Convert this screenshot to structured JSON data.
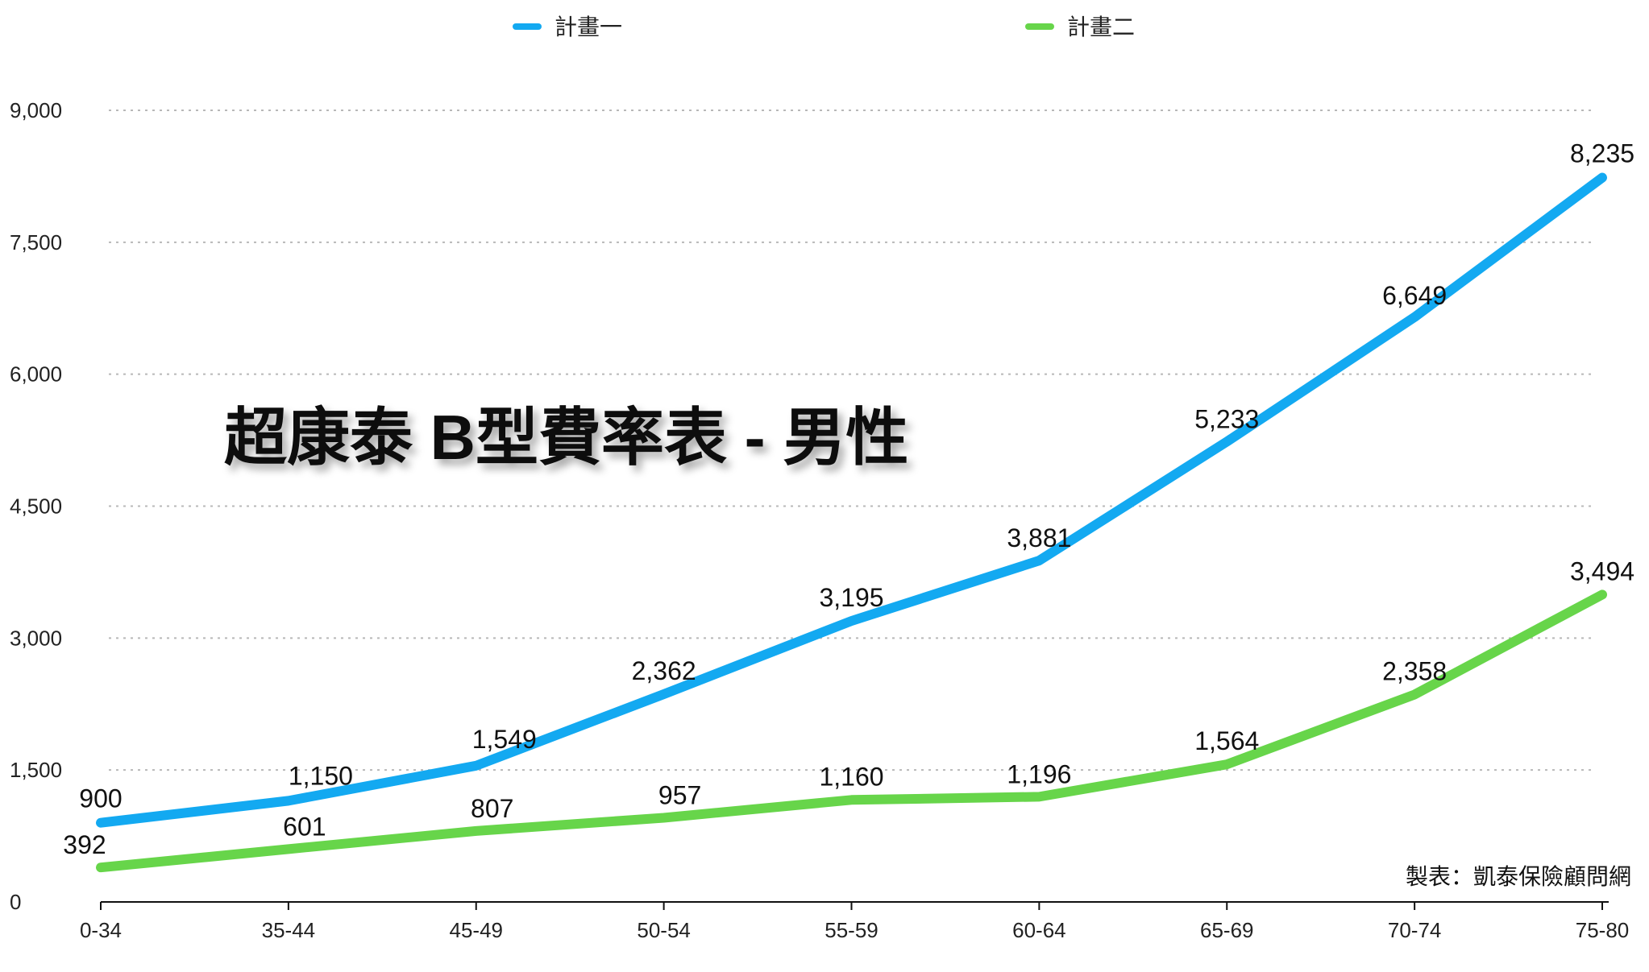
{
  "colors": {
    "series_1": "#13A9F1",
    "series_2": "#67D54A",
    "grid": "#B8B8B8",
    "axis": "#111111",
    "text": "#111111"
  },
  "chart_data": {
    "type": "line",
    "title": "超康泰 B型費率表 - 男性",
    "subtitle": "",
    "xlabel": "",
    "ylabel": "",
    "grid": true,
    "legend_position": "top",
    "categories": [
      "0-34",
      "35-44",
      "45-49",
      "50-54",
      "55-59",
      "60-64",
      "65-69",
      "70-74",
      "75-80"
    ],
    "ylim": [
      0,
      9000
    ],
    "yticks": [
      0,
      1500,
      3000,
      4500,
      6000,
      7500,
      9000
    ],
    "ytick_labels": [
      "0",
      "1,500",
      "3,000",
      "4,500",
      "6,000",
      "7,500",
      "9,000"
    ],
    "series": [
      {
        "name": "計畫一",
        "color": "#13A9F1",
        "values": [
          900,
          1150,
          1549,
          2362,
          3195,
          3881,
          5233,
          6649,
          8235
        ],
        "labels": [
          "900",
          "1,150",
          "1,549",
          "2,362",
          "3,195",
          "3,881",
          "5,233",
          "6,649",
          "8,235"
        ]
      },
      {
        "name": "計畫二",
        "color": "#67D54A",
        "values": [
          392,
          601,
          807,
          957,
          1160,
          1196,
          1564,
          2358,
          3494
        ],
        "labels": [
          "392",
          "601",
          "807",
          "957",
          "1,160",
          "1,196",
          "1,564",
          "2,358",
          "3,494"
        ]
      }
    ],
    "annotation": "製表：凱泰保險顧問網"
  }
}
